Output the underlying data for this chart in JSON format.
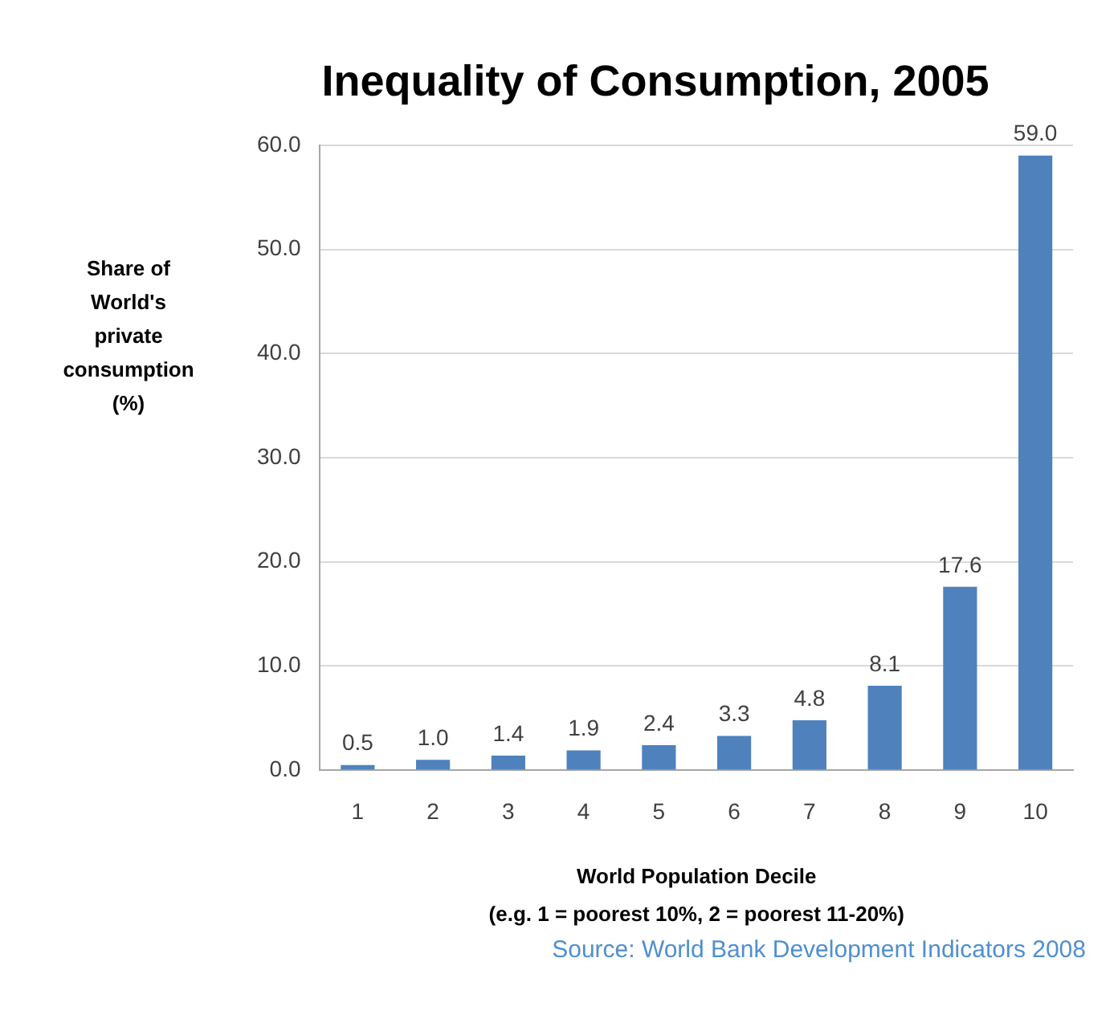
{
  "chart_data": {
    "type": "bar",
    "title": "Inequality of Consumption, 2005",
    "ylabel": "Share of World's private consumption (%)",
    "xlabel": "World Population Decile",
    "annotations": [
      "(e.g. 1 = poorest 10%, 2 = poorest 11-20%)",
      "Source: World Bank Development Indicators 2008"
    ],
    "categories": [
      "1",
      "2",
      "3",
      "4",
      "5",
      "6",
      "7",
      "8",
      "9",
      "10"
    ],
    "values": [
      0.5,
      1.0,
      1.4,
      1.9,
      2.4,
      3.3,
      4.8,
      8.1,
      17.6,
      59.0
    ],
    "value_labels": [
      "0.5",
      "1.0",
      "1.4",
      "1.9",
      "2.4",
      "3.3",
      "4.8",
      "8.1",
      "17.6",
      "59.0"
    ],
    "color": "#4f81bd",
    "ylim": [
      0,
      60
    ],
    "yticks": [
      {
        "value": 0,
        "label": "0.0"
      },
      {
        "value": 10,
        "label": "10.0"
      },
      {
        "value": 20,
        "label": "20.0"
      },
      {
        "value": 30,
        "label": "30.0"
      },
      {
        "value": 40,
        "label": "40.0"
      },
      {
        "value": 50,
        "label": "50.0"
      },
      {
        "value": 60,
        "label": "60.0"
      }
    ],
    "grid": "y",
    "legend": false
  }
}
